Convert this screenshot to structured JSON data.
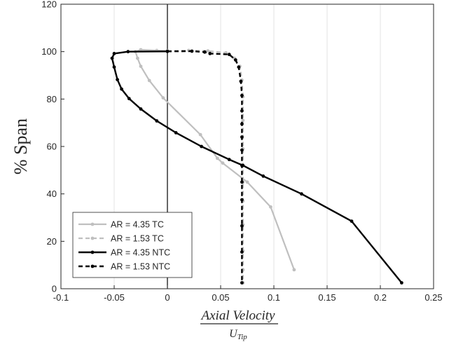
{
  "chart_data": {
    "type": "line",
    "xlabel": {
      "numerator": "Axial Velocity",
      "denominator_main": "U",
      "denominator_sub": "Tip"
    },
    "ylabel": "% Span",
    "xlim": [
      -0.1,
      0.25
    ],
    "ylim": [
      0,
      120
    ],
    "xticks": [
      -0.1,
      -0.05,
      0,
      0.05,
      0.1,
      0.15,
      0.2,
      0.25
    ],
    "xtick_labels": [
      "-0.1",
      "-0.05",
      "0",
      "0.05",
      "0.1",
      "0.15",
      "0.2",
      "0.25"
    ],
    "yticks": [
      0,
      20,
      40,
      60,
      80,
      100,
      120
    ],
    "ytick_labels": [
      "0",
      "20",
      "40",
      "60",
      "80",
      "100",
      "120"
    ],
    "grid": "vertical",
    "zero_line": true,
    "legend_position": "bottom-left",
    "series": [
      {
        "name": "AR = 4.35 TC",
        "color": "#bfbfbf",
        "dashed": false,
        "points": [
          [
            0.119,
            8
          ],
          [
            0.097,
            34.5
          ],
          [
            0.075,
            45
          ],
          [
            0.052,
            53
          ],
          [
            0.047,
            55
          ],
          [
            0.031,
            65
          ],
          [
            -0.004,
            80.5
          ],
          [
            -0.017,
            87.8
          ],
          [
            -0.025,
            93.8
          ],
          [
            -0.028,
            97.2
          ],
          [
            -0.03,
            100
          ],
          [
            -0.025,
            100.8
          ],
          [
            -0.01,
            100.5
          ],
          [
            0.0,
            100.3
          ]
        ]
      },
      {
        "name": "AR = 1.53 TC",
        "color": "#bfbfbf",
        "dashed": true,
        "points": [
          [
            0.0,
            100.3
          ],
          [
            0.02,
            100.5
          ],
          [
            0.038,
            100.3
          ],
          [
            0.055,
            99.5
          ],
          [
            0.063,
            97.2
          ],
          [
            0.068,
            93.8
          ],
          [
            0.07,
            88
          ],
          [
            0.071,
            81
          ],
          [
            0.071,
            71
          ],
          [
            0.071,
            59
          ],
          [
            0.071,
            45
          ],
          [
            0.071,
            37
          ],
          [
            0.071,
            27
          ],
          [
            0.071,
            16
          ],
          [
            0.071,
            8
          ],
          [
            0.071,
            2.5
          ]
        ]
      },
      {
        "name": "AR = 4.35 NTC",
        "color": "#000000",
        "dashed": false,
        "points": [
          [
            0.22,
            2.5
          ],
          [
            0.173,
            28.5
          ],
          [
            0.126,
            40
          ],
          [
            0.09,
            47.5
          ],
          [
            0.071,
            52
          ],
          [
            0.058,
            54.5
          ],
          [
            0.032,
            60
          ],
          [
            0.008,
            65.8
          ],
          [
            -0.01,
            70.8
          ],
          [
            -0.025,
            75.8
          ],
          [
            -0.036,
            80.2
          ],
          [
            -0.043,
            84.2
          ],
          [
            -0.047,
            88.2
          ],
          [
            -0.05,
            93.5
          ],
          [
            -0.052,
            97.2
          ],
          [
            -0.05,
            99.2
          ],
          [
            -0.037,
            100
          ],
          [
            0.0,
            100.1
          ]
        ]
      },
      {
        "name": "AR = 1.53 NTC",
        "color": "#000000",
        "dashed": true,
        "points": [
          [
            0.0,
            100.1
          ],
          [
            0.023,
            100.2
          ],
          [
            0.035,
            99.8
          ],
          [
            0.04,
            99.2
          ],
          [
            0.058,
            98.8
          ],
          [
            0.064,
            96.5
          ],
          [
            0.067,
            93.5
          ],
          [
            0.069,
            87.5
          ],
          [
            0.07,
            81.5
          ],
          [
            0.07,
            75
          ],
          [
            0.07,
            69.5
          ],
          [
            0.07,
            64
          ],
          [
            0.07,
            58.5
          ],
          [
            0.07,
            52
          ],
          [
            0.07,
            45
          ],
          [
            0.07,
            37.5
          ],
          [
            0.07,
            26.5
          ],
          [
            0.07,
            15.5
          ],
          [
            0.07,
            2.5
          ]
        ]
      }
    ]
  }
}
